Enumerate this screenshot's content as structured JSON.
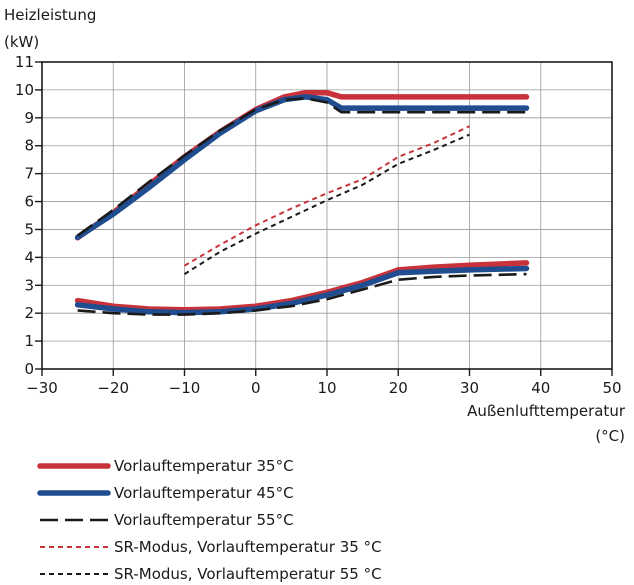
{
  "chart_data": {
    "type": "line",
    "ylabel_line1": "Heizleistung",
    "ylabel_line2": "(kW)",
    "xlabel_line1": "Außenlufttemperatur",
    "xlabel_line2": "(°C)",
    "xlim": [
      -30,
      50
    ],
    "ylim": [
      0,
      11
    ],
    "xticks": [
      -30,
      -20,
      -10,
      0,
      10,
      20,
      30,
      40,
      50
    ],
    "xtick_labels": [
      "−30",
      "−20",
      "−10",
      "0",
      "10",
      "20",
      "30",
      "40",
      "50"
    ],
    "yticks": [
      0,
      1,
      2,
      3,
      4,
      5,
      6,
      7,
      8,
      9,
      10,
      11
    ],
    "grid": true,
    "legend_position": "bottom",
    "series": [
      {
        "name": "Vorlauftemperatur 35°C",
        "color": "#c8323a",
        "style": "solid-thick",
        "segments": [
          [
            [
              -25,
              4.7
            ],
            [
              -20,
              5.6
            ],
            [
              -15,
              6.6
            ],
            [
              -10,
              7.6
            ],
            [
              -5,
              8.5
            ],
            [
              0,
              9.3
            ],
            [
              4,
              9.75
            ],
            [
              7,
              9.9
            ],
            [
              10,
              9.9
            ],
            [
              12,
              9.75
            ],
            [
              20,
              9.75
            ],
            [
              30,
              9.75
            ],
            [
              38,
              9.75
            ]
          ],
          [
            [
              -25,
              2.45
            ],
            [
              -20,
              2.25
            ],
            [
              -15,
              2.15
            ],
            [
              -10,
              2.12
            ],
            [
              -5,
              2.15
            ],
            [
              0,
              2.25
            ],
            [
              5,
              2.45
            ],
            [
              10,
              2.75
            ],
            [
              15,
              3.1
            ],
            [
              20,
              3.55
            ],
            [
              25,
              3.65
            ],
            [
              30,
              3.72
            ],
            [
              38,
              3.8
            ]
          ]
        ]
      },
      {
        "name": "Vorlauftemperatur 45°C",
        "color": "#1f4d8f",
        "style": "solid-thick",
        "segments": [
          [
            [
              -25,
              4.72
            ],
            [
              -20,
              5.55
            ],
            [
              -15,
              6.5
            ],
            [
              -10,
              7.5
            ],
            [
              -5,
              8.45
            ],
            [
              0,
              9.25
            ],
            [
              4,
              9.65
            ],
            [
              7,
              9.75
            ],
            [
              10,
              9.65
            ],
            [
              12,
              9.35
            ],
            [
              20,
              9.35
            ],
            [
              30,
              9.35
            ],
            [
              38,
              9.35
            ]
          ],
          [
            [
              -25,
              2.3
            ],
            [
              -20,
              2.15
            ],
            [
              -15,
              2.05
            ],
            [
              -10,
              2.02
            ],
            [
              -5,
              2.05
            ],
            [
              0,
              2.15
            ],
            [
              5,
              2.35
            ],
            [
              10,
              2.65
            ],
            [
              15,
              3.0
            ],
            [
              20,
              3.45
            ],
            [
              25,
              3.5
            ],
            [
              30,
              3.55
            ],
            [
              38,
              3.6
            ]
          ]
        ]
      },
      {
        "name": "Vorlauftemperatur 55°C",
        "color": "#1a1a1a",
        "style": "long-dash",
        "segments": [
          [
            [
              -25,
              4.78
            ],
            [
              -20,
              5.7
            ],
            [
              -15,
              6.7
            ],
            [
              -10,
              7.65
            ],
            [
              -5,
              8.55
            ],
            [
              0,
              9.3
            ],
            [
              4,
              9.65
            ],
            [
              7,
              9.7
            ],
            [
              10,
              9.55
            ],
            [
              12,
              9.2
            ],
            [
              20,
              9.2
            ],
            [
              30,
              9.2
            ],
            [
              38,
              9.2
            ]
          ],
          [
            [
              -25,
              2.1
            ],
            [
              -20,
              2.0
            ],
            [
              -15,
              1.95
            ],
            [
              -10,
              1.95
            ],
            [
              -5,
              2.0
            ],
            [
              0,
              2.1
            ],
            [
              5,
              2.25
            ],
            [
              10,
              2.5
            ],
            [
              15,
              2.85
            ],
            [
              20,
              3.2
            ],
            [
              25,
              3.3
            ],
            [
              30,
              3.35
            ],
            [
              38,
              3.4
            ]
          ]
        ]
      },
      {
        "name": "SR-Modus, Vorlauftemperatur 35 °C",
        "color": "#c8323a",
        "style": "short-dash",
        "segments": [
          [
            [
              -10,
              3.7
            ],
            [
              -5,
              4.45
            ],
            [
              0,
              5.15
            ],
            [
              5,
              5.75
            ],
            [
              10,
              6.3
            ],
            [
              15,
              6.8
            ],
            [
              20,
              7.6
            ],
            [
              25,
              8.1
            ],
            [
              30,
              8.7
            ]
          ]
        ]
      },
      {
        "name": "SR-Modus, Vorlauftemperatur 55 °C",
        "color": "#1a1a1a",
        "style": "short-dash",
        "segments": [
          [
            [
              -10,
              3.4
            ],
            [
              -5,
              4.2
            ],
            [
              0,
              4.85
            ],
            [
              5,
              5.45
            ],
            [
              10,
              6.05
            ],
            [
              15,
              6.6
            ],
            [
              20,
              7.35
            ],
            [
              25,
              7.85
            ],
            [
              30,
              8.4
            ]
          ]
        ]
      }
    ]
  }
}
